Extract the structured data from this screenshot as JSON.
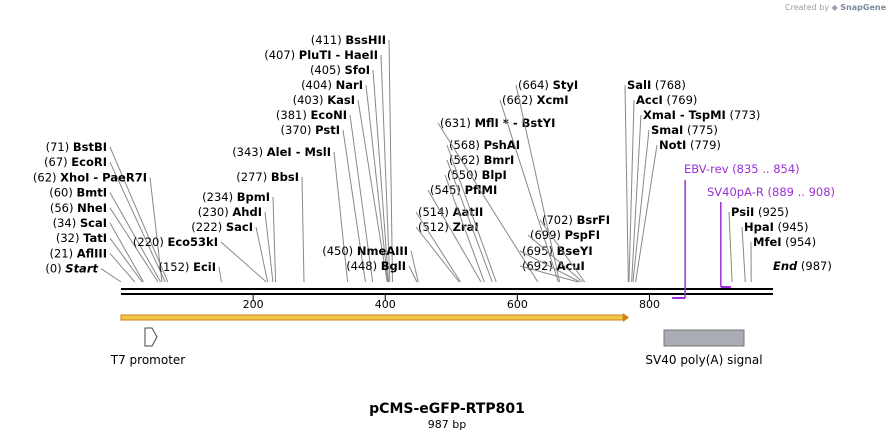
{
  "credit": {
    "prefix": "Created by",
    "brand": "SnapGene"
  },
  "title": "pCMS-eGFP-RTP801",
  "subtitle": "987 bp",
  "sequence_length": 987,
  "axis_ticks": [
    {
      "pos": 200,
      "label": "200"
    },
    {
      "pos": 400,
      "label": "400"
    },
    {
      "pos": 600,
      "label": "600"
    },
    {
      "pos": 800,
      "label": "800"
    }
  ],
  "colors": {
    "primer": "#9b30d9",
    "orf_fill": "#f0c54a",
    "orf_stroke": "#d4821a",
    "polya": "#a9adb3",
    "line": "#000000",
    "leader": "#888888"
  },
  "left_sites": [
    {
      "pos": 0,
      "text": "(0)",
      "name": "Start",
      "italic": true
    },
    {
      "pos": 21,
      "text": "(21)",
      "name": "AflIII"
    },
    {
      "pos": 32,
      "text": "(32)",
      "name": "TatI"
    },
    {
      "pos": 34,
      "text": "(34)",
      "name": "ScaI"
    },
    {
      "pos": 56,
      "text": "(56)",
      "name": "NheI"
    },
    {
      "pos": 60,
      "text": "(60)",
      "name": "BmtI"
    },
    {
      "pos": 62,
      "text": "(62)",
      "name": "XhoI - PaeR7I"
    },
    {
      "pos": 67,
      "text": "(67)",
      "name": "EcoRI"
    },
    {
      "pos": 71,
      "text": "(71)",
      "name": "BstBI"
    }
  ],
  "mid_sites": [
    {
      "pos": 152,
      "text": "(152)",
      "name": "EciI"
    },
    {
      "pos": 220,
      "text": "(220)",
      "name": "Eco53kI"
    },
    {
      "pos": 222,
      "text": "(222)",
      "name": "SacI"
    },
    {
      "pos": 230,
      "text": "(230)",
      "name": "AhdI"
    },
    {
      "pos": 234,
      "text": "(234)",
      "name": "BpmI"
    },
    {
      "pos": 277,
      "text": "(277)",
      "name": "BbsI"
    },
    {
      "pos": 343,
      "text": "(343)",
      "name": "AleI - MslI"
    },
    {
      "pos": 370,
      "text": "(370)",
      "name": "PstI"
    },
    {
      "pos": 381,
      "text": "(381)",
      "name": "EcoNI"
    },
    {
      "pos": 403,
      "text": "(403)",
      "name": "KasI"
    },
    {
      "pos": 404,
      "text": "(404)",
      "name": "NarI"
    },
    {
      "pos": 405,
      "text": "(405)",
      "name": "SfoI"
    },
    {
      "pos": 407,
      "text": "(407)",
      "name": "PluTI - HaeII"
    },
    {
      "pos": 411,
      "text": "(411)",
      "name": "BssHII"
    },
    {
      "pos": 448,
      "text": "(448)",
      "name": "BglI"
    },
    {
      "pos": 450,
      "text": "(450)",
      "name": "NmeAIII"
    }
  ],
  "right_mid_sites": [
    {
      "pos": 512,
      "text": "(512)",
      "name": "ZraI"
    },
    {
      "pos": 514,
      "text": "(514)",
      "name": "AatII"
    },
    {
      "pos": 545,
      "text": "(545)",
      "name": "PflMI"
    },
    {
      "pos": 550,
      "text": "(550)",
      "name": "BlpI"
    },
    {
      "pos": 562,
      "text": "(562)",
      "name": "BmrI"
    },
    {
      "pos": 568,
      "text": "(568)",
      "name": "PshAI"
    },
    {
      "pos": 631,
      "text": "(631)",
      "name": "MflI * - BstYI"
    },
    {
      "pos": 662,
      "text": "(662)",
      "name": "XcmI"
    },
    {
      "pos": 664,
      "text": "(664)",
      "name": "StyI"
    },
    {
      "pos": 692,
      "text": "(692)",
      "name": "AcuI"
    },
    {
      "pos": 695,
      "text": "(695)",
      "name": "BseYI"
    },
    {
      "pos": 699,
      "text": "(699)",
      "name": "PspFI"
    },
    {
      "pos": 702,
      "text": "(702)",
      "name": "BsrFI"
    }
  ],
  "right_sites": [
    {
      "pos": 768,
      "text": "(768)",
      "name": "SalI"
    },
    {
      "pos": 769,
      "text": "(769)",
      "name": "AccI"
    },
    {
      "pos": 773,
      "text": "(773)",
      "name": "XmaI - TspMI"
    },
    {
      "pos": 775,
      "text": "(775)",
      "name": "SmaI"
    },
    {
      "pos": 779,
      "text": "(779)",
      "name": "NotI"
    },
    {
      "pos": 925,
      "text": "(925)",
      "name": "PsiI"
    },
    {
      "pos": 945,
      "text": "(945)",
      "name": "HpaI"
    },
    {
      "pos": 954,
      "text": "(954)",
      "name": "MfeI"
    },
    {
      "pos": 987,
      "text": "(987)",
      "name": "End",
      "italic": true
    }
  ],
  "primers": [
    {
      "name": "EBV-rev",
      "range": "(835 .. 854)",
      "start": 835,
      "end": 854
    },
    {
      "name": "SV40pA-R",
      "range": "(889 .. 908)",
      "start": 889,
      "end": 908
    }
  ],
  "features": [
    {
      "name": "T7 promoter",
      "start": 20,
      "end": 39,
      "type": "promoter"
    },
    {
      "name": "SV40 poly(A) signal",
      "start": 824,
      "end": 945,
      "type": "polyA"
    },
    {
      "name": "ORF",
      "start": 0,
      "end": 760,
      "type": "orf"
    }
  ]
}
